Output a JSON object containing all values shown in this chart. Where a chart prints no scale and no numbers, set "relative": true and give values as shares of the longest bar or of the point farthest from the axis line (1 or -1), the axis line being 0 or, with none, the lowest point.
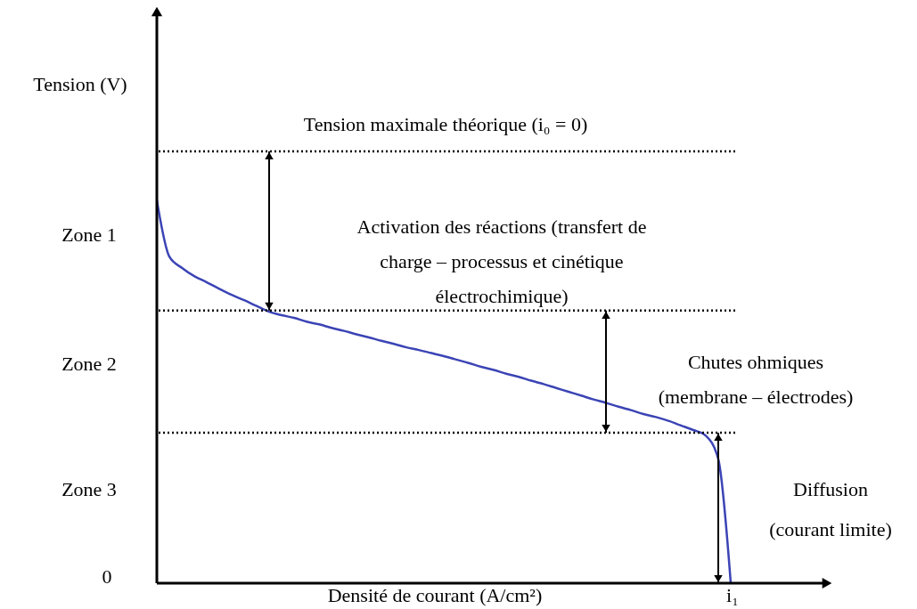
{
  "chart_data": {
    "type": "line",
    "relative": true,
    "xlabel": "Densité de courant (A/cm²)",
    "categories": [
      null,
      null,
      null,
      null,
      null,
      null,
      null,
      null,
      null,
      null,
      null,
      null,
      null,
      null,
      null,
      null,
      null,
      null,
      null,
      null,
      null,
      null,
      null,
      null,
      null,
      null,
      null,
      null,
      null,
      null,
      null,
      null,
      null,
      null,
      null,
      null,
      null,
      null,
      null,
      null,
      null,
      null,
      null,
      null,
      null,
      null,
      null
    ],
    "series": [
      {
        "color": "#3b44b5",
        "values": [
          1,
          0.853,
          0.824,
          0.802,
          0.786,
          0.769,
          0.753,
          0.739,
          0.724,
          0.709,
          0.7,
          0.693,
          0.683,
          0.676,
          0.667,
          0.659,
          0.65,
          0.642,
          0.633,
          0.625,
          0.616,
          0.609,
          0.601,
          0.593,
          0.584,
          0.575,
          0.565,
          0.557,
          0.547,
          0.539,
          0.529,
          0.52,
          0.51,
          0.5,
          0.49,
          0.48,
          0.471,
          0.461,
          0.452,
          0.442,
          0.434,
          0.424,
          0.412,
          0.4,
          0.385,
          0.324,
          0
        ]
      }
    ],
    "ref_lines": [
      {
        "axis": "y",
        "value": 1.128,
        "color": "#000000",
        "line_style": "dotted"
      },
      {
        "axis": "y",
        "value": 0.712,
        "color": "#000000",
        "line_style": "dotted"
      },
      {
        "axis": "y",
        "value": 0.393,
        "color": "#000000",
        "line_style": "dotted"
      }
    ],
    "annotations": [
      "Activation des réactions (transfert de charge – processus et cinétique électrochimique)",
      "Chutes ohmiques (membrane – électrodes)",
      "Diffusion (courant limite)",
      "Zone 1",
      "Zone 2",
      "Zone 3",
      "0",
      "i₁",
      "Tension (V)",
      "Tension maximale théorique (i₀ = 0)"
    ]
  }
}
